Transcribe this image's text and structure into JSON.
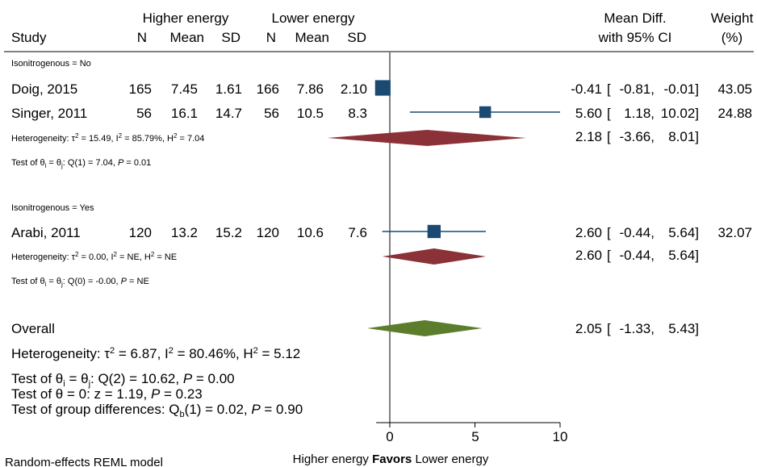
{
  "chart_data": {
    "type": "forest",
    "headers": {
      "higher_energy": "Higher energy",
      "lower_energy": "Lower energy",
      "study": "Study",
      "n": "N",
      "mean": "Mean",
      "sd": "SD",
      "md_line1": "Mean Diff.",
      "md_line2": "with 95% CI",
      "weight_line1": "Weight",
      "weight_line2": "(%)"
    },
    "groups": [
      {
        "label": "Isonitrogenous = No",
        "studies": [
          {
            "name": "Doig, 2015",
            "n1": "165",
            "mean1": "7.45",
            "sd1": "1.61",
            "n2": "166",
            "mean2": "7.86",
            "sd2": "2.10",
            "md": -0.41,
            "lo": -0.81,
            "hi": -0.01,
            "md_text": "-0.41",
            "lo_text": "-0.81,",
            "hi_text": "-0.01]",
            "weight": "43.05"
          },
          {
            "name": "Singer, 2011",
            "n1": "56",
            "mean1": "16.1",
            "sd1": "14.7",
            "n2": "56",
            "mean2": "10.5",
            "sd2": "8.3",
            "md": 5.6,
            "lo": 1.18,
            "hi": 10.02,
            "md_text": "5.60",
            "lo_text": "1.18,",
            "hi_text": "10.02]",
            "weight": "24.88"
          }
        ],
        "summary": {
          "md": 2.18,
          "lo": -3.66,
          "hi": 8.01,
          "md_text": "2.18",
          "lo_text": "-3.66,",
          "hi_text": "8.01]"
        },
        "heterogeneity": "Heterogeneity: τ² = 15.49, I² = 85.79%, H² = 7.04",
        "test": "Test of θᵢ = θⱼ: Q(1) = 7.04, P = 0.01"
      },
      {
        "label": "Isonitrogenous = Yes",
        "studies": [
          {
            "name": "Arabi, 2011",
            "n1": "120",
            "mean1": "13.2",
            "sd1": "15.2",
            "n2": "120",
            "mean2": "10.6",
            "sd2": "7.6",
            "md": 2.6,
            "lo": -0.44,
            "hi": 5.64,
            "md_text": "2.60",
            "lo_text": "-0.44,",
            "hi_text": "5.64]",
            "weight": "32.07"
          }
        ],
        "summary": {
          "md": 2.6,
          "lo": -0.44,
          "hi": 5.64,
          "md_text": "2.60",
          "lo_text": "-0.44,",
          "hi_text": "5.64]"
        },
        "heterogeneity": "Heterogeneity: τ² = 0.00, I² = NE, H² = NE",
        "test": "Test of θᵢ = θⱼ: Q(0) = -0.00, P = NE"
      }
    ],
    "overall": {
      "label": "Overall",
      "md": 2.05,
      "lo": -1.33,
      "hi": 5.43,
      "md_text": "2.05",
      "lo_text": "-1.33,",
      "hi_text": "5.43]",
      "heterogeneity": "Heterogeneity: τ² = 6.87, I² = 80.46%, H² = 5.12",
      "test_q": "Test of θᵢ = θⱼ: Q(2) = 10.62, P = 0.00",
      "test_z": "Test of θ = 0: z = 1.19, P = 0.23",
      "test_group": "Test of group differences: Q_b(1) = 0.02, P = 0.90"
    },
    "x_axis": {
      "ticks": [
        0,
        5,
        10
      ],
      "tick_labels": [
        "0",
        "5",
        "10"
      ],
      "range": [
        -0.8,
        10
      ],
      "favors": "Favors",
      "left_label": "Higher energy",
      "right_label": "Lower energy"
    },
    "model_note": "Random-effects REML model",
    "colors": {
      "study_marker": "#1a4a72",
      "subgroup_diamond": "#8b3238",
      "overall_diamond": "#5b7d2c",
      "ci_line": "#1a4a72"
    }
  }
}
